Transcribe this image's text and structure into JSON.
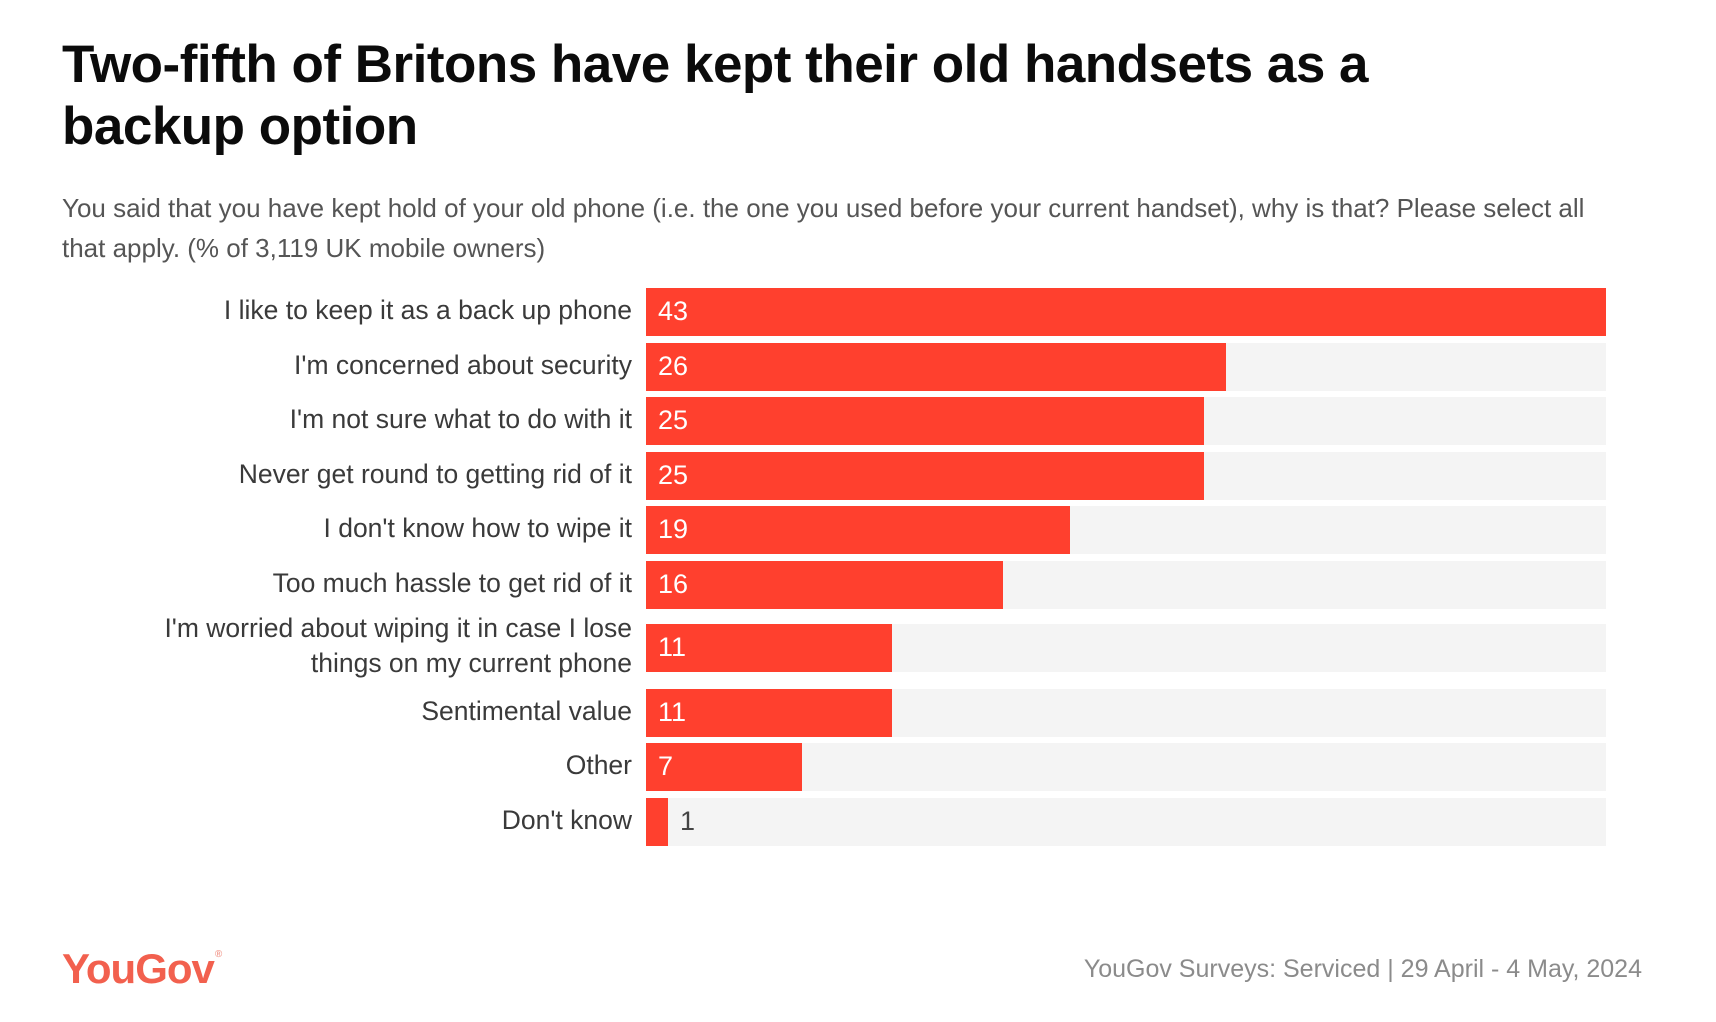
{
  "chart_data": {
    "type": "bar",
    "orientation": "horizontal",
    "title": "Two-fifth of Britons have kept their old handsets as a backup option",
    "subtitle": "You said that you have kept hold of your old phone (i.e. the one you used before your current handset), why is that? Please select all that apply. (% of 3,119 UK mobile owners)",
    "xlabel": "",
    "ylabel": "",
    "unit": "%",
    "xlim": [
      0,
      43
    ],
    "grid": false,
    "legend": "none",
    "categories": [
      "I like to keep it as a back up phone",
      "I'm concerned about security",
      "I'm not sure what to do with it",
      "Never get round to getting rid of it",
      "I don't know how to wipe it",
      "Too much hassle to get rid of it",
      "I'm worried about wiping it in case I lose things on my current phone",
      "Sentimental value",
      "Other",
      "Don't know"
    ],
    "label_lines": [
      [
        "I like to keep it as a back up phone"
      ],
      [
        "I'm concerned about security"
      ],
      [
        "I'm not sure what to do with it"
      ],
      [
        "Never get round to getting rid of it"
      ],
      [
        "I don't know how to wipe it"
      ],
      [
        "Too much hassle to get rid of it"
      ],
      [
        "I'm worried about wiping it in case I lose",
        "things on my current phone"
      ],
      [
        "Sentimental value"
      ],
      [
        "Other"
      ],
      [
        "Don't know"
      ]
    ],
    "values": [
      43,
      26,
      25,
      25,
      19,
      16,
      11,
      11,
      7,
      1
    ],
    "colors": {
      "bar": "#ff402e",
      "track": "#f4f4f4"
    }
  },
  "footer": {
    "brand": "YouGov",
    "brand_mark": "®",
    "brand_color": "#f2604e",
    "source": "YouGov Surveys: Serviced | 29 April - 4 May, 2024"
  }
}
